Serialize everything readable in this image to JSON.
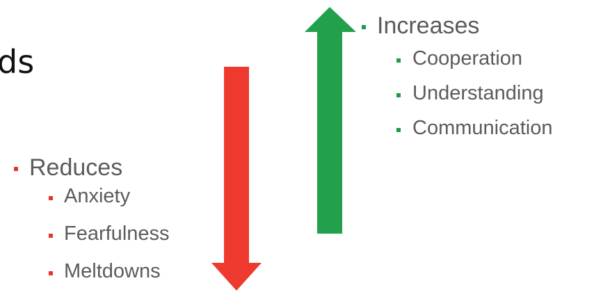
{
  "partial_title": "ds",
  "reduces": {
    "heading": "Reduces",
    "items": [
      "Anxiety",
      "Fearfulness",
      "Meltdowns"
    ],
    "color": "#e8342c",
    "arrow_direction": "down"
  },
  "increases": {
    "heading": "Increases",
    "items": [
      "Cooperation",
      "Understanding",
      "Communication"
    ],
    "color": "#1e9a4b",
    "arrow_direction": "up"
  },
  "colors": {
    "text": "#5b5b5b",
    "title": "#111111",
    "down_arrow": "#ee3a2e",
    "up_arrow": "#22a04c"
  }
}
